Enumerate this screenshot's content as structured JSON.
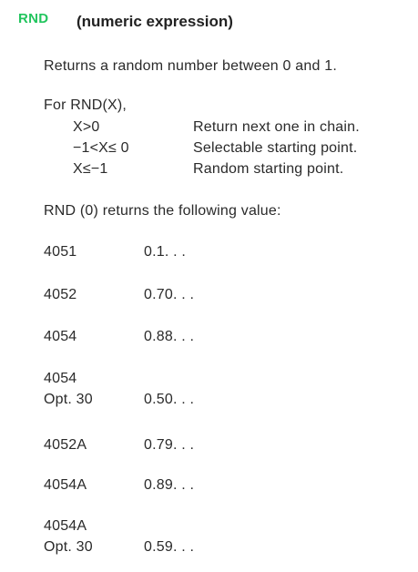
{
  "header": {
    "keyword": "RND",
    "syntax": "(numeric expression)"
  },
  "description": "Returns a random number between 0 and 1.",
  "for_line": "For RND(X),",
  "conditions": [
    {
      "cond": "X>0",
      "desc": "Return next one in chain."
    },
    {
      "cond": "−1<X≤ 0",
      "desc": "Selectable starting point."
    },
    {
      "cond": "X≤−1",
      "desc": "Random starting point."
    }
  ],
  "rnd0_line": "RND (0) returns the following value:",
  "table": [
    {
      "model": "4051",
      "opt": "",
      "value": "0.1. . ."
    },
    {
      "model": "4052",
      "opt": "",
      "value": "0.70. . ."
    },
    {
      "model": "4054",
      "opt": "",
      "value": "0.88. . ."
    },
    {
      "model": "4054",
      "opt": "Opt. 30",
      "value": "0.50. . ."
    },
    {
      "model": "4052A",
      "opt": "",
      "value": "0.79. . ."
    },
    {
      "model": "4054A",
      "opt": "",
      "value": "0.89. . ."
    },
    {
      "model": "4054A",
      "opt": "Opt. 30",
      "value": "0.59. . ."
    }
  ],
  "colors": {
    "keyword": "#22c55e",
    "text": "#2a2a2a",
    "background": "#ffffff"
  }
}
